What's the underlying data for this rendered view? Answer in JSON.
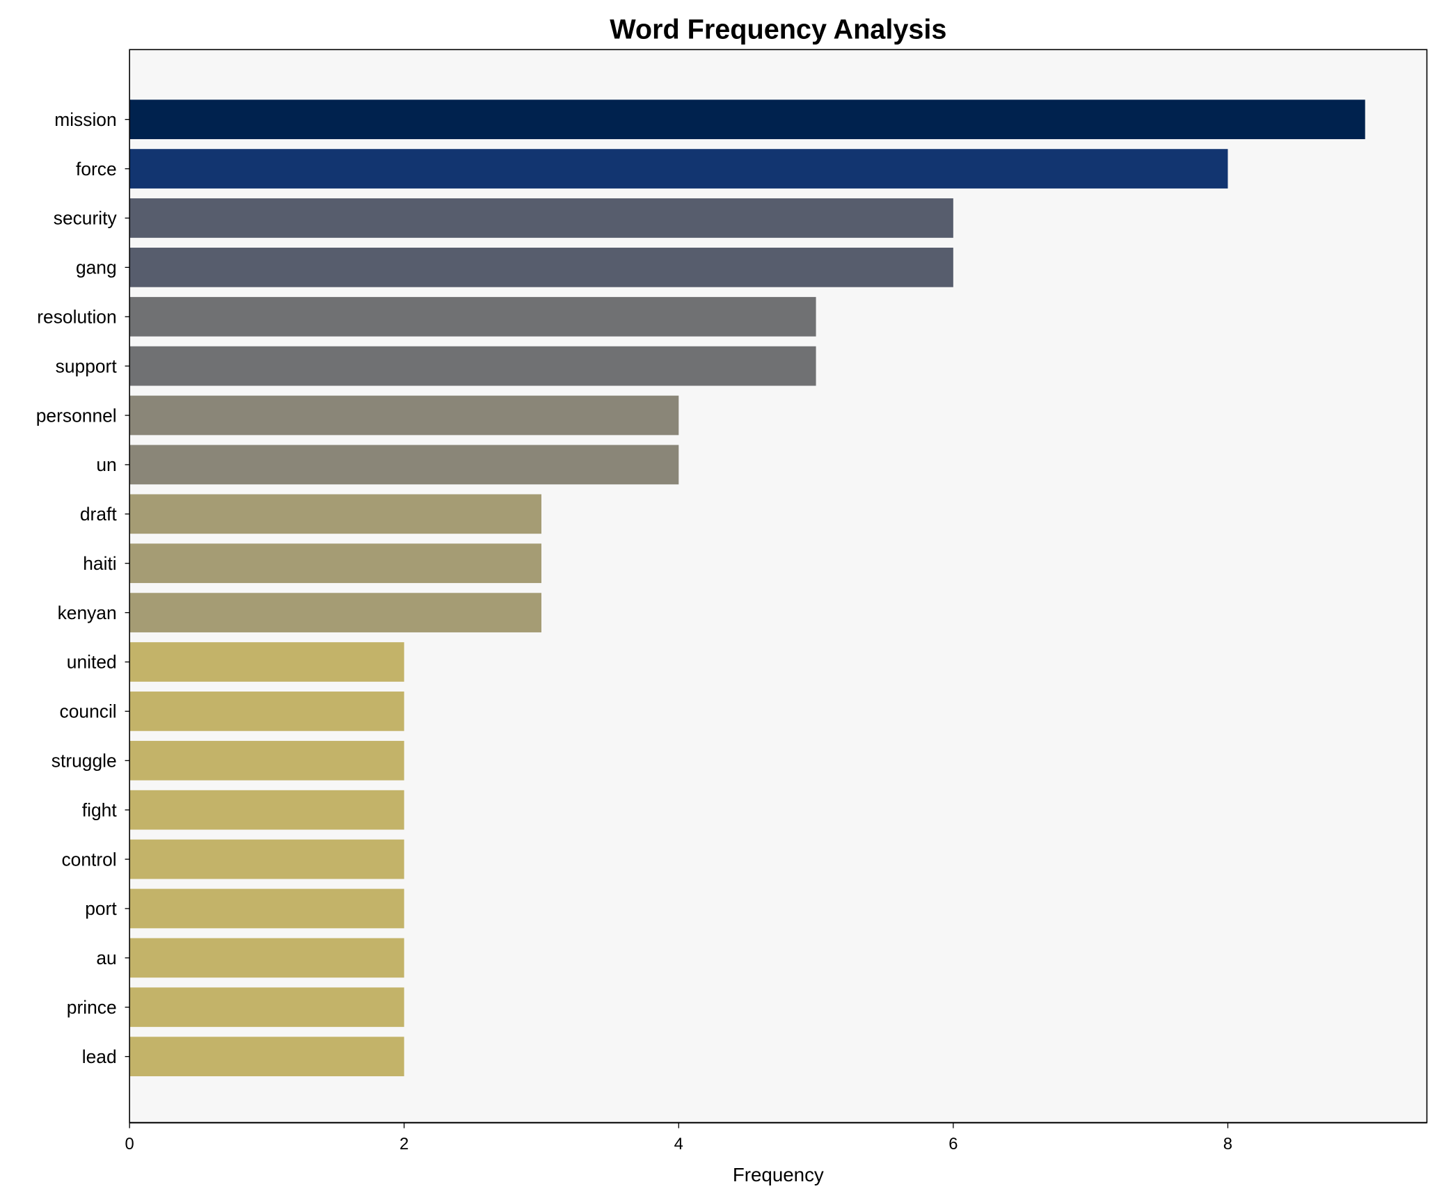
{
  "chart_data": {
    "type": "bar",
    "orientation": "horizontal",
    "title": "Word Frequency Analysis",
    "xlabel": "Frequency",
    "ylabel": "",
    "xlim": [
      0,
      9.45
    ],
    "xticks": [
      0,
      2,
      4,
      6,
      8
    ],
    "grid": false,
    "categories": [
      "mission",
      "force",
      "security",
      "gang",
      "resolution",
      "support",
      "personnel",
      "un",
      "draft",
      "haiti",
      "kenyan",
      "united",
      "council",
      "struggle",
      "fight",
      "control",
      "port",
      "au",
      "prince",
      "lead"
    ],
    "values": [
      9,
      8,
      6,
      6,
      5,
      5,
      4,
      4,
      3,
      3,
      3,
      2,
      2,
      2,
      2,
      2,
      2,
      2,
      2,
      2
    ],
    "colors": [
      "#00224e",
      "#123570",
      "#575d6d",
      "#575d6d",
      "#707173",
      "#707173",
      "#8a8678",
      "#8a8678",
      "#a59c74",
      "#a59c74",
      "#a59c74",
      "#c3b369",
      "#c3b369",
      "#c3b369",
      "#c3b369",
      "#c3b369",
      "#c3b369",
      "#c3b369",
      "#c3b369",
      "#c3b369"
    ],
    "plot_background": "#f7f7f7"
  }
}
